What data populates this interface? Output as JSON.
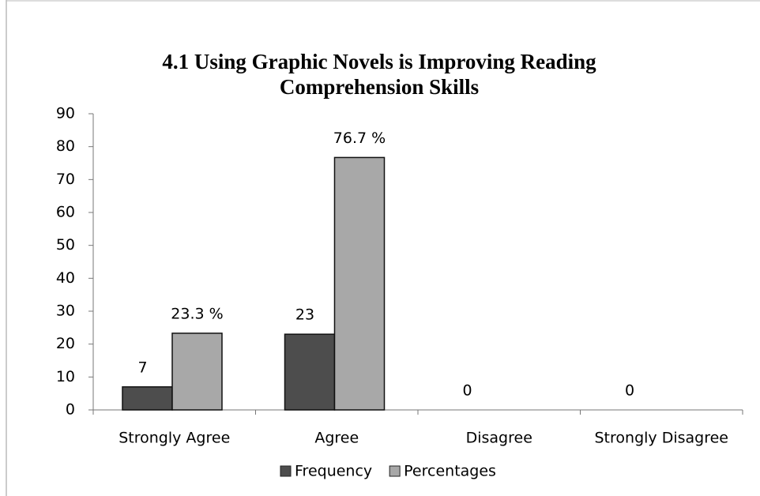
{
  "chart_data": {
    "type": "bar",
    "title": "4.1 Using Graphic Novels is Improving Reading Comprehension Skills",
    "categories": [
      "Strongly Agree",
      "Agree",
      "Disagree",
      "Strongly Disagree"
    ],
    "series": [
      {
        "name": "Frequency",
        "color": "#4d4d4d",
        "values": [
          7,
          23,
          0,
          0
        ]
      },
      {
        "name": "Percentages",
        "color": "#a8a8a8",
        "values": [
          23.3,
          76.7,
          null,
          null
        ],
        "value_labels": [
          "23.3 %",
          "76.7 %",
          null,
          null
        ]
      }
    ],
    "ylim": [
      0,
      90
    ],
    "yticks": [
      0,
      10,
      20,
      30,
      40,
      50,
      60,
      70,
      80,
      90
    ],
    "legend": "bottom"
  }
}
